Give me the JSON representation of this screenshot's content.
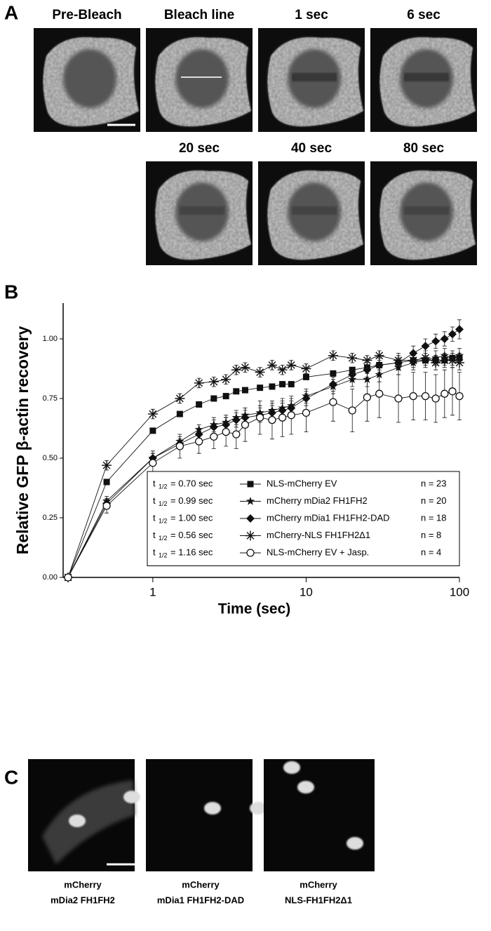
{
  "panel_a": {
    "label": "A",
    "frames": [
      "Pre-Bleach",
      "Bleach line",
      "1 sec",
      "6 sec",
      "20 sec",
      "40 sec",
      "80 sec"
    ]
  },
  "chart_data": {
    "type": "line",
    "panel_label": "B",
    "y_label": "Relative GFP β-actin recovery",
    "x_label": "Time (sec)",
    "log_x": true,
    "xlim": [
      0.26,
      100
    ],
    "xticks": [
      1,
      10,
      100
    ],
    "ylim": [
      0,
      1.15
    ],
    "yticks": [
      {
        "value": 0,
        "label": "0.00"
      },
      {
        "value": 0.25,
        "label": "0.25"
      },
      {
        "value": 0.5,
        "label": "0.50"
      },
      {
        "value": 0.75,
        "label": "0.75"
      },
      {
        "value": 1,
        "label": "1.00"
      }
    ],
    "x": [
      0.28,
      0.5,
      1,
      1.5,
      2,
      2.5,
      3,
      3.5,
      4,
      5,
      6,
      7,
      8,
      10,
      15,
      20,
      25,
      30,
      40,
      50,
      60,
      70,
      80,
      90,
      100
    ],
    "legend_t": "t",
    "legend_sub": "1/2",
    "series": [
      {
        "name": "NLS-mCherry EV",
        "color": "#111111",
        "marker": "square",
        "half_life": "= 0.70 sec",
        "n": "n = 23",
        "values": [
          0,
          0.4,
          0.615,
          0.685,
          0.725,
          0.75,
          0.76,
          0.78,
          0.785,
          0.795,
          0.8,
          0.81,
          0.81,
          0.84,
          0.855,
          0.87,
          0.88,
          0.89,
          0.9,
          0.91,
          0.91,
          0.91,
          0.91,
          0.92,
          0.92
        ],
        "errors": [
          0,
          0.01,
          0.01,
          0.01,
          0.01,
          0.01,
          0.01,
          0.01,
          0.01,
          0.01,
          0.01,
          0.01,
          0.01,
          0.01,
          0.01,
          0.01,
          0.01,
          0.01,
          0.02,
          0.02,
          0.02,
          0.02,
          0.02,
          0.02,
          0.02
        ]
      },
      {
        "name": "mCherry mDia2 FH1FH2",
        "color": "#111111",
        "marker": "star",
        "half_life": "= 0.99 sec",
        "n": "n = 20",
        "values": [
          0,
          0.32,
          0.5,
          0.57,
          0.62,
          0.64,
          0.65,
          0.67,
          0.68,
          0.69,
          0.7,
          0.71,
          0.72,
          0.76,
          0.8,
          0.83,
          0.83,
          0.85,
          0.88,
          0.9,
          0.91,
          0.92,
          0.93,
          0.92,
          0.93
        ],
        "errors": [
          0,
          0.02,
          0.02,
          0.02,
          0.02,
          0.03,
          0.03,
          0.03,
          0.03,
          0.03,
          0.03,
          0.03,
          0.03,
          0.03,
          0.03,
          0.03,
          0.03,
          0.03,
          0.03,
          0.03,
          0.03,
          0.03,
          0.03,
          0.03,
          0.03
        ]
      },
      {
        "name": "mCherry mDia1 FH1FH2-DAD",
        "color": "#111111",
        "marker": "diamond",
        "half_life": "= 1.00 sec",
        "n": "n = 18",
        "values": [
          0,
          0.31,
          0.5,
          0.56,
          0.6,
          0.63,
          0.64,
          0.66,
          0.67,
          0.68,
          0.69,
          0.7,
          0.71,
          0.75,
          0.81,
          0.85,
          0.87,
          0.89,
          0.9,
          0.94,
          0.97,
          0.99,
          1,
          1.02,
          1.04
        ],
        "errors": [
          0,
          0.02,
          0.02,
          0.02,
          0.02,
          0.03,
          0.03,
          0.03,
          0.03,
          0.03,
          0.03,
          0.03,
          0.03,
          0.03,
          0.03,
          0.03,
          0.03,
          0.03,
          0.03,
          0.03,
          0.03,
          0.03,
          0.03,
          0.03,
          0.04
        ]
      },
      {
        "name": "mCherry-NLS FH1FH2Δ1",
        "color": "#111111",
        "marker": "asterisk",
        "half_life": "= 0.56 sec",
        "n": "n = 8",
        "values": [
          0,
          0.47,
          0.685,
          0.75,
          0.815,
          0.82,
          0.83,
          0.87,
          0.88,
          0.86,
          0.89,
          0.87,
          0.89,
          0.875,
          0.93,
          0.92,
          0.91,
          0.93,
          0.91,
          0.91,
          0.92,
          0.9,
          0.91,
          0.91,
          0.9
        ],
        "errors": [
          0,
          0.02,
          0.02,
          0.02,
          0.02,
          0.02,
          0.02,
          0.02,
          0.02,
          0.02,
          0.02,
          0.02,
          0.02,
          0.02,
          0.02,
          0.02,
          0.02,
          0.02,
          0.03,
          0.03,
          0.03,
          0.03,
          0.03,
          0.03,
          0.03
        ]
      },
      {
        "name": "NLS-mCherry EV + Jasp.",
        "color": "#111111",
        "marker": "circle",
        "half_life": "= 1.16 sec",
        "n": "n = 4",
        "values": [
          0,
          0.3,
          0.48,
          0.55,
          0.57,
          0.59,
          0.61,
          0.6,
          0.64,
          0.67,
          0.66,
          0.67,
          0.68,
          0.69,
          0.735,
          0.7,
          0.755,
          0.77,
          0.75,
          0.76,
          0.76,
          0.75,
          0.77,
          0.78,
          0.76
        ],
        "errors": [
          0,
          0.03,
          0.05,
          0.05,
          0.05,
          0.05,
          0.06,
          0.06,
          0.07,
          0.07,
          0.08,
          0.08,
          0.08,
          0.08,
          0.08,
          0.09,
          0.1,
          0.1,
          0.1,
          0.1,
          0.1,
          0.1,
          0.1,
          0.1,
          0.1
        ]
      }
    ]
  },
  "panel_c": {
    "label": "C",
    "captions": [
      [
        "mCherry",
        "mDia2 FH1FH2"
      ],
      [
        "mCherry",
        "mDia1 FH1FH2-DAD"
      ],
      [
        "mCherry",
        "NLS-FH1FH2Δ1"
      ]
    ]
  }
}
